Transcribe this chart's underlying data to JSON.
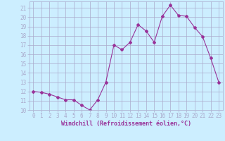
{
  "x": [
    0,
    1,
    2,
    3,
    4,
    5,
    6,
    7,
    8,
    9,
    10,
    11,
    12,
    13,
    14,
    15,
    16,
    17,
    18,
    19,
    20,
    21,
    22,
    23
  ],
  "y": [
    12.0,
    11.9,
    11.7,
    11.4,
    11.1,
    11.1,
    10.5,
    10.0,
    11.1,
    13.0,
    17.0,
    16.5,
    17.3,
    19.2,
    18.5,
    17.3,
    20.1,
    21.3,
    20.2,
    20.1,
    18.9,
    17.9,
    15.6,
    13.0
  ],
  "line_color": "#993399",
  "marker": "D",
  "marker_size": 2.0,
  "bg_color": "#cceeff",
  "grid_color": "#aaaacc",
  "xlabel": "Windchill (Refroidissement éolien,°C)",
  "xlabel_color": "#993399",
  "tick_color": "#993399",
  "xlim": [
    -0.5,
    23.5
  ],
  "ylim": [
    10,
    21.7
  ],
  "yticks": [
    10,
    11,
    12,
    13,
    14,
    15,
    16,
    17,
    18,
    19,
    20,
    21
  ],
  "xticks": [
    0,
    1,
    2,
    3,
    4,
    5,
    6,
    7,
    8,
    9,
    10,
    11,
    12,
    13,
    14,
    15,
    16,
    17,
    18,
    19,
    20,
    21,
    22,
    23
  ],
  "tick_fontsize": 5.5,
  "xlabel_fontsize": 6.0
}
